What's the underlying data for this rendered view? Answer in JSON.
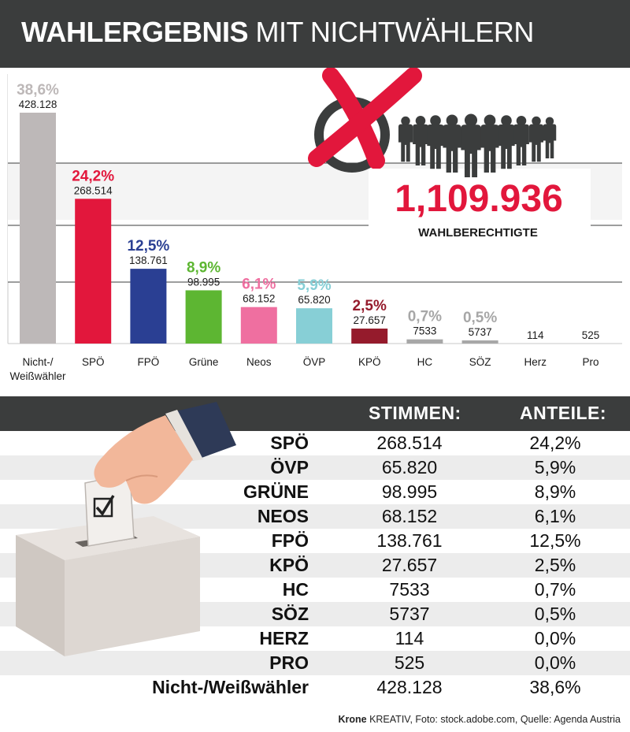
{
  "header": {
    "title_bold": "WAHLERGEBNIS",
    "title_light": "MIT NICHTWÄHLERN"
  },
  "callout": {
    "number": "1,109.936",
    "label": "WAHLBERECHTIGTE"
  },
  "chart_data": {
    "type": "bar",
    "categories": [
      "Nicht-/\nWeißwähler",
      "SPÖ",
      "FPÖ",
      "Grüne",
      "Neos",
      "ÖVP",
      "KPÖ",
      "HC",
      "SÖZ",
      "Herz",
      "Pro"
    ],
    "values": [
      38.6,
      24.2,
      12.5,
      8.9,
      6.1,
      5.9,
      2.5,
      0.7,
      0.5,
      0.0,
      0.0
    ],
    "pct_labels": [
      "38,6%",
      "24,2%",
      "12,5%",
      "8,9%",
      "6,1%",
      "5,9%",
      "2,5%",
      "0,7%",
      "0,5%",
      "",
      ""
    ],
    "count_labels": [
      "428.128",
      "268.514",
      "138.761",
      "98.995",
      "68.152",
      "65.820",
      "27.657",
      "7533",
      "5737",
      "114",
      "525"
    ],
    "colors": [
      "#bdb8b8",
      "#e2173c",
      "#2a3f93",
      "#5db632",
      "#ef6fa0",
      "#87cfd6",
      "#951b2c",
      "#a7a7a7",
      "#a7a7a7",
      "#a7a7a7",
      "#a7a7a7"
    ],
    "label_colors": [
      "#bdb8b8",
      "#e2173c",
      "#2a3f93",
      "#5db632",
      "#ef6fa0",
      "#87cfd6",
      "#951b2c",
      "#a7a7a7",
      "#a7a7a7",
      "#a7a7a7",
      "#a7a7a7"
    ],
    "ylim": [
      0,
      38.6
    ],
    "grid": true
  },
  "table": {
    "col_votes": "STIMMEN:",
    "col_share": "ANTEILE:",
    "rows": [
      {
        "party": "SPÖ",
        "votes": "268.514",
        "share": "24,2%"
      },
      {
        "party": "ÖVP",
        "votes": "65.820",
        "share": "5,9%"
      },
      {
        "party": "GRÜNE",
        "votes": "98.995",
        "share": "8,9%"
      },
      {
        "party": "NEOS",
        "votes": "68.152",
        "share": "6,1%"
      },
      {
        "party": "FPÖ",
        "votes": "138.761",
        "share": "12,5%"
      },
      {
        "party": "KPÖ",
        "votes": "27.657",
        "share": "2,5%"
      },
      {
        "party": "HC",
        "votes": "7533",
        "share": "0,7%"
      },
      {
        "party": "SÖZ",
        "votes": "5737",
        "share": "0,5%"
      },
      {
        "party": "HERZ",
        "votes": "114",
        "share": "0,0%"
      },
      {
        "party": "PRO",
        "votes": "525",
        "share": "0,0%"
      },
      {
        "party": "Nicht-/Weißwähler",
        "votes": "428.128",
        "share": "38,6%"
      }
    ]
  },
  "footer": {
    "brand": "Krone",
    "text": " KREATIV, Foto: stock.adobe.com, Quelle: Agenda Austria"
  },
  "icons": {
    "no_vote": "crossed-circle-icon",
    "people": "people-group-icon",
    "ballot": "ballot-box-icon"
  }
}
